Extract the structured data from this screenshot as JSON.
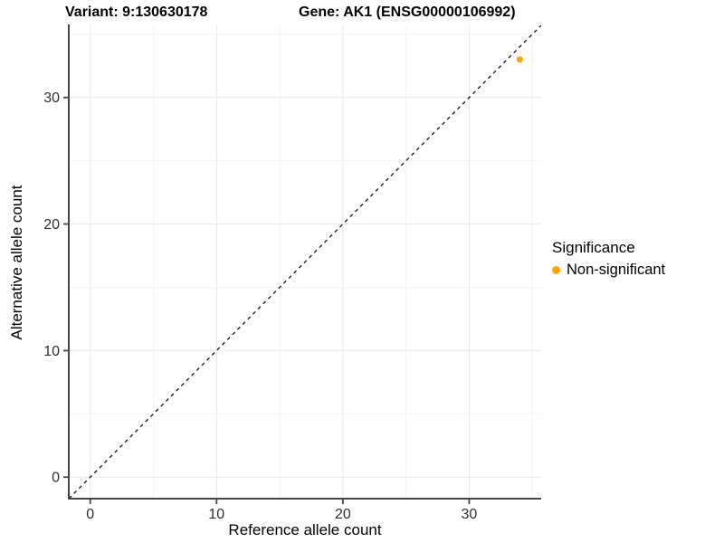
{
  "chart_data": {
    "type": "scatter",
    "titles": [
      "Variant: 9:130630178",
      "Gene: AK1 (ENSG00000106992)"
    ],
    "xlabel": "Reference allele count",
    "ylabel": "Alternative allele count",
    "xlim": [
      -1.7,
      35.7
    ],
    "ylim": [
      -1.7,
      35.7
    ],
    "x_ticks": [
      0,
      10,
      20,
      30
    ],
    "y_ticks": [
      0,
      10,
      20,
      30
    ],
    "x_minor_ticks": [
      5,
      15,
      25,
      35
    ],
    "y_minor_ticks": [
      5,
      15,
      25,
      35
    ],
    "grid": "major+minor",
    "series": [
      {
        "name": "Non-significant",
        "color": "#FFA500",
        "points": [
          {
            "x": 34,
            "y": 33
          }
        ]
      }
    ],
    "reference_line": {
      "type": "identity",
      "slope": 1,
      "intercept": 0,
      "style": "dashed",
      "color": "#111111"
    },
    "legend": {
      "title": "Significance",
      "position": "right",
      "entries": [
        {
          "label": "Non-significant",
          "color": "#FFA500"
        }
      ]
    },
    "style": {
      "grid_major_color": "#E8E8E8",
      "grid_minor_color": "#F4F4F4",
      "axis_line_color": "#464646",
      "tick_label_color": "#303030",
      "background": "#FFFFFF"
    }
  }
}
